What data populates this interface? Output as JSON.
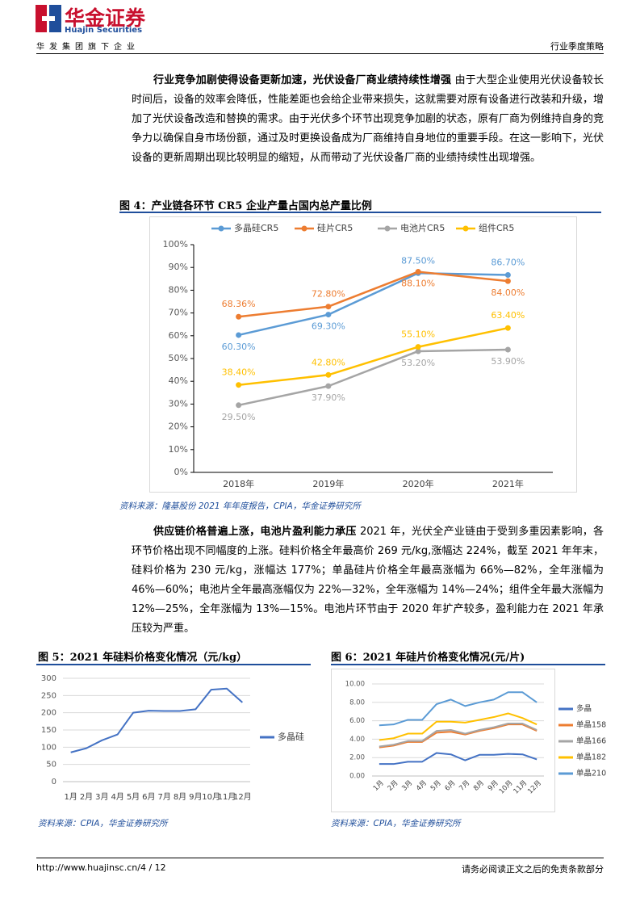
{
  "header": {
    "brand": "华金证券",
    "brand_en": "Huajin Securities",
    "group": "华发集团旗下企业",
    "report_type": "行业季度策略"
  },
  "paragraphs": [
    {
      "bold": "行业竞争加剧使得设备更新加速，光伏设备厂商业绩持续性增强",
      "text": "由于大型企业使用光伏设备较长时间后，设备的效率会降低，性能差距也会给企业带来损失，这就需要对原有设备进行改装和升级，增加了光伏设备改造和替换的需求。由于光伏多个环节出现竞争加剧的状态，原有厂商为例维持自身的竞争力以确保自身市场份额，通过及时更换设备成为厂商维持自身地位的重要手段。在这一影响下，光伏设备的更新周期出现比较明显的缩短，从而带动了光伏设备厂商的业绩持续性出现增强。"
    },
    {
      "bold": "供应链价格普遍上涨，电池片盈利能力承压",
      "text": "2021 年，光伏全产业链由于受到多重因素影响，各环节价格出现不同幅度的上涨。硅料价格全年最高价 269 元/kg,涨幅达 224%，截至 2021 年年末，硅料价格为 230 元/kg，涨幅达 177%；单晶硅片价格全年最高涨幅为 66%—82%，全年涨幅为 46%—60%；电池片全年最高涨幅仅为 22%—32%，全年涨幅为 14%—24%；组件全年最大涨幅为 12%—25%，全年涨幅为 13%—15%。电池片环节由于 2020 年扩产较多，盈利能力在 2021 年承压较为严重。"
    }
  ],
  "chart_data": [
    {
      "type": "line",
      "title": "图 4：产业链各环节 CR5 企业产量占国内总产量比例",
      "source": "资料来源：隆基股份 2021 年年度报告，CPIA，华金证券研究所",
      "categories": [
        "2018年",
        "2019年",
        "2020年",
        "2021年"
      ],
      "ylim": [
        0,
        100
      ],
      "yticks": [
        {
          "value": 0,
          "label": "0%"
        },
        {
          "value": 10,
          "label": "10%"
        },
        {
          "value": 20,
          "label": "20%"
        },
        {
          "value": 30,
          "label": "30%"
        },
        {
          "value": 40,
          "label": "40%"
        },
        {
          "value": 50,
          "label": "50%"
        },
        {
          "value": 60,
          "label": "60%"
        },
        {
          "value": 70,
          "label": "70%"
        },
        {
          "value": 80,
          "label": "80%"
        },
        {
          "value": 90,
          "label": "90%"
        },
        {
          "value": 100,
          "label": "100%"
        }
      ],
      "grid": false,
      "legend": "top",
      "markers": true,
      "series": [
        {
          "name": "多晶硅CR5",
          "color": "#5b9bd5",
          "values": [
            60.3,
            69.3,
            87.5,
            86.7
          ],
          "value_labels": [
            "60.30%",
            "69.30%",
            "87.50%",
            "86.70%"
          ]
        },
        {
          "name": "硅片CR5",
          "color": "#ed7d31",
          "values": [
            68.36,
            72.8,
            88.1,
            84.0
          ],
          "value_labels": [
            "68.36%",
            "72.80%",
            "88.10%",
            "84.00%"
          ]
        },
        {
          "name": "电池片CR5",
          "color": "#a5a5a5",
          "values": [
            29.5,
            37.9,
            53.2,
            53.9
          ],
          "value_labels": [
            "29.50%",
            "37.90%",
            "53.20%",
            "53.90%"
          ]
        },
        {
          "name": "组件CR5",
          "color": "#ffc000",
          "values": [
            38.4,
            42.8,
            55.1,
            63.4
          ],
          "value_labels": [
            "38.40%",
            "42.80%",
            "55.10%",
            "63.40%"
          ]
        }
      ]
    },
    {
      "type": "line",
      "title": "图 5：2021 年硅料价格变化情况（元/kg）",
      "source": "资料来源：CPIA，华金证券研究所",
      "categories": [
        "1月",
        "2月",
        "3月",
        "4月",
        "5月",
        "6月",
        "7月",
        "8月",
        "9月",
        "10月",
        "11月",
        "12月"
      ],
      "ylim": [
        0,
        300
      ],
      "yticks": [
        0,
        50,
        100,
        150,
        200,
        250,
        300
      ],
      "grid": true,
      "legend": "right",
      "markers": false,
      "series": [
        {
          "name": "多晶硅",
          "color": "#4472c4",
          "values": [
            85,
            97,
            120,
            137,
            200,
            206,
            205,
            205,
            210,
            267,
            270,
            230
          ]
        }
      ]
    },
    {
      "type": "line",
      "title": "图 6：2021 年硅片价格变化情况(元/片)",
      "source": "资料来源：CPIA，华金证券研究所",
      "categories": [
        "1月",
        "2月",
        "3月",
        "4月",
        "5月",
        "6月",
        "7月",
        "8月",
        "9月",
        "10月",
        "11月",
        "12月"
      ],
      "ylim": [
        0,
        10
      ],
      "yticks": [
        {
          "value": 0,
          "label": "0.00"
        },
        {
          "value": 2,
          "label": "2.00"
        },
        {
          "value": 4,
          "label": "4.00"
        },
        {
          "value": 6,
          "label": "6.00"
        },
        {
          "value": 8,
          "label": "8.00"
        },
        {
          "value": 10,
          "label": "10.00"
        }
      ],
      "grid": true,
      "legend": "right",
      "markers": false,
      "rotate_x_labels": true,
      "series": [
        {
          "name": "多晶",
          "color": "#4472c4",
          "values": [
            1.3,
            1.3,
            1.55,
            1.55,
            2.5,
            2.35,
            1.7,
            2.3,
            2.3,
            2.4,
            2.35,
            1.8
          ]
        },
        {
          "name": "单晶158",
          "color": "#ed7d31",
          "values": [
            3.1,
            3.3,
            3.7,
            3.7,
            4.7,
            4.8,
            4.5,
            4.9,
            5.2,
            5.6,
            5.6,
            4.9
          ]
        },
        {
          "name": "单晶166",
          "color": "#a5a5a5",
          "values": [
            3.2,
            3.4,
            3.8,
            3.8,
            4.9,
            5.0,
            4.6,
            5.0,
            5.3,
            5.7,
            5.7,
            5.0
          ]
        },
        {
          "name": "单晶182",
          "color": "#ffc000",
          "values": [
            3.9,
            4.1,
            4.6,
            4.6,
            5.9,
            5.9,
            5.8,
            6.1,
            6.4,
            6.8,
            6.3,
            5.6
          ]
        },
        {
          "name": "单晶210",
          "color": "#5b9bd5",
          "values": [
            5.5,
            5.6,
            6.1,
            6.1,
            7.8,
            8.3,
            7.6,
            8.0,
            8.3,
            9.1,
            9.1,
            8.0
          ]
        }
      ]
    }
  ],
  "footer": {
    "url": "http://www.huajinsc.cn/",
    "page": "4 / 12",
    "disclaimer": "请务必阅读正文之后的免责条款部分"
  }
}
